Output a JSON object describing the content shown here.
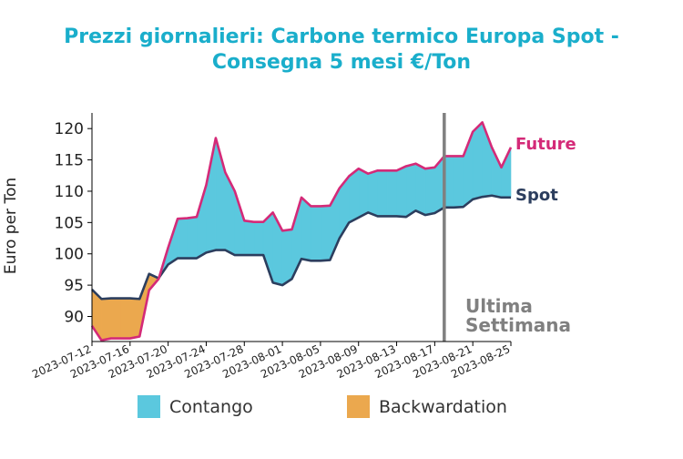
{
  "chart_data": {
    "type": "area",
    "title_lines": [
      "Prezzi giornalieri: Carbone termico Europa Spot -",
      "Consegna 5 mesi €/Ton"
    ],
    "ylabel": "Euro per Ton",
    "ylim": [
      86,
      122.5
    ],
    "yticks": [
      90,
      95,
      100,
      105,
      110,
      115,
      120
    ],
    "xlim": [
      "2023-07-12",
      "2023-08-25"
    ],
    "xticks": [
      "2023-07-12",
      "2023-07-16",
      "2023-07-20",
      "2023-07-24",
      "2023-07-28",
      "2023-08-01",
      "2023-08-05",
      "2023-08-09",
      "2023-08-13",
      "2023-08-17",
      "2023-08-21",
      "2023-08-25"
    ],
    "dates": [
      "2023-07-12",
      "2023-07-13",
      "2023-07-14",
      "2023-07-15",
      "2023-07-16",
      "2023-07-17",
      "2023-07-18",
      "2023-07-19",
      "2023-07-20",
      "2023-07-21",
      "2023-07-22",
      "2023-07-23",
      "2023-07-24",
      "2023-07-25",
      "2023-07-26",
      "2023-07-27",
      "2023-07-28",
      "2023-07-29",
      "2023-07-30",
      "2023-07-31",
      "2023-08-01",
      "2023-08-02",
      "2023-08-03",
      "2023-08-04",
      "2023-08-05",
      "2023-08-06",
      "2023-08-07",
      "2023-08-08",
      "2023-08-09",
      "2023-08-10",
      "2023-08-11",
      "2023-08-12",
      "2023-08-13",
      "2023-08-14",
      "2023-08-15",
      "2023-08-16",
      "2023-08-17",
      "2023-08-18",
      "2023-08-19",
      "2023-08-20",
      "2023-08-21",
      "2023-08-22",
      "2023-08-23",
      "2023-08-24",
      "2023-08-25"
    ],
    "series": [
      {
        "name": "Future",
        "color": "#d42a78",
        "values": [
          88.5,
          86.2,
          86.5,
          86.5,
          86.5,
          86.8,
          94.2,
          96.0,
          101.0,
          105.6,
          105.7,
          105.9,
          111.0,
          118.5,
          113.0,
          110.0,
          105.3,
          105.1,
          105.1,
          106.6,
          103.7,
          103.9,
          109.0,
          107.6,
          107.6,
          107.7,
          110.5,
          112.4,
          113.6,
          112.8,
          113.3,
          113.3,
          113.3,
          114.0,
          114.4,
          113.6,
          113.8,
          115.6,
          115.6,
          115.6,
          119.5,
          121.0,
          117.0,
          113.8,
          117.0
        ]
      },
      {
        "name": "Spot",
        "color": "#2c3e5e",
        "values": [
          94.3,
          92.8,
          92.9,
          92.9,
          92.9,
          92.8,
          96.8,
          96.1,
          98.3,
          99.3,
          99.3,
          99.3,
          100.2,
          100.6,
          100.6,
          99.8,
          99.8,
          99.8,
          99.8,
          95.4,
          95.0,
          96.0,
          99.2,
          98.9,
          98.9,
          99.0,
          102.5,
          105.0,
          105.8,
          106.6,
          106.0,
          106.0,
          106.0,
          105.9,
          106.9,
          106.2,
          106.5,
          107.4,
          107.4,
          107.5,
          108.7,
          109.1,
          109.3,
          109.0,
          109.0
        ]
      }
    ],
    "fill_colors": {
      "contango": "#5bc8de",
      "backwardation": "#eba84e"
    },
    "vline": {
      "x": "2023-08-18",
      "color": "#808080"
    },
    "annotation_lines": [
      "Ultima",
      "Settimana"
    ],
    "legend": [
      {
        "label": "Contango",
        "color": "#5bc8de"
      },
      {
        "label": "Backwardation",
        "color": "#eba84e"
      }
    ],
    "legend_position": "bottom-center"
  }
}
